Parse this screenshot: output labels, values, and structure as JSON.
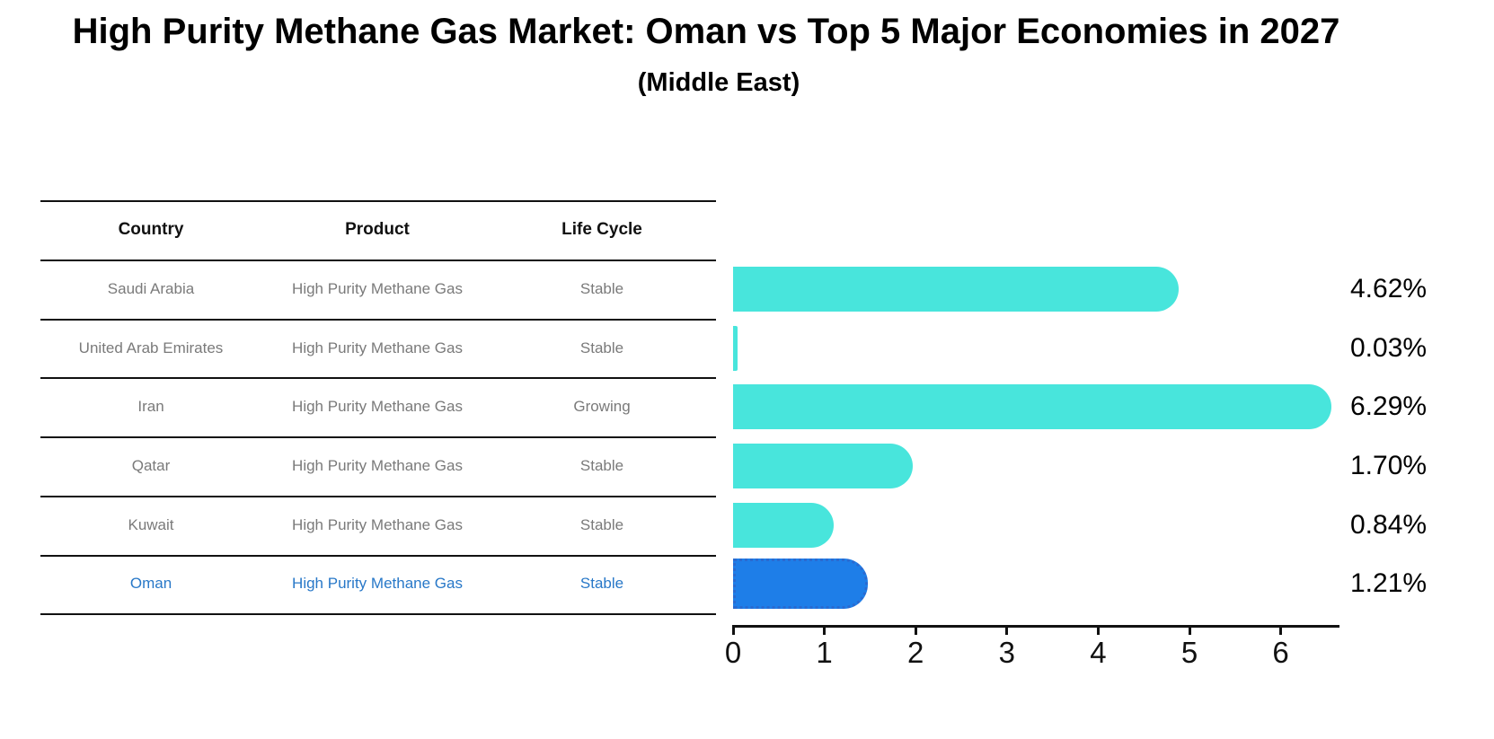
{
  "header": {
    "title": "High Purity Methane Gas Market: Oman vs Top 5 Major Economies in 2027",
    "subtitle": "(Middle East)"
  },
  "table": {
    "columns": [
      "Country",
      "Product",
      "Life Cycle"
    ],
    "rows": [
      {
        "country": "Saudi Arabia",
        "product": "High Purity Methane Gas",
        "life_cycle": "Stable",
        "highlight": false
      },
      {
        "country": "United Arab Emirates",
        "product": "High Purity Methane Gas",
        "life_cycle": "Stable",
        "highlight": false
      },
      {
        "country": "Iran",
        "product": "High Purity Methane Gas",
        "life_cycle": "Growing",
        "highlight": false
      },
      {
        "country": "Qatar",
        "product": "High Purity Methane Gas",
        "life_cycle": "Stable",
        "highlight": false
      },
      {
        "country": "Kuwait",
        "product": "High Purity Methane Gas",
        "life_cycle": "Stable",
        "highlight": false
      },
      {
        "country": "Oman",
        "product": "High Purity Methane Gas",
        "life_cycle": "Stable",
        "highlight": true
      }
    ]
  },
  "chart_data": {
    "type": "bar",
    "orientation": "horizontal",
    "title": "High Purity Methane Gas Market: Oman vs Top 5 Major Economies in 2027",
    "subtitle": "(Middle East)",
    "categories": [
      "Saudi Arabia",
      "United Arab Emirates",
      "Iran",
      "Qatar",
      "Kuwait",
      "Oman"
    ],
    "values": [
      4.62,
      0.03,
      6.29,
      1.7,
      0.84,
      1.21
    ],
    "value_labels": [
      "4.62%",
      "0.03%",
      "6.29%",
      "1.70%",
      "0.84%",
      "1.21%"
    ],
    "xlim": [
      0,
      6.63
    ],
    "xticks": [
      0,
      1,
      2,
      3,
      4,
      5,
      6
    ],
    "grid": false,
    "legend": "none",
    "bar_color": "#48E5DC",
    "highlight_index": 5,
    "highlight_bar_color": "#1E7EE8",
    "highlight_border_color": "#2A6AD0",
    "axis_color": "#111111",
    "tick_label_color": "#111111",
    "value_label_color": "#000000",
    "row_text_color": "#7A7A7A",
    "highlight_text_color": "#2878C8",
    "header_text_color": "#111111"
  }
}
